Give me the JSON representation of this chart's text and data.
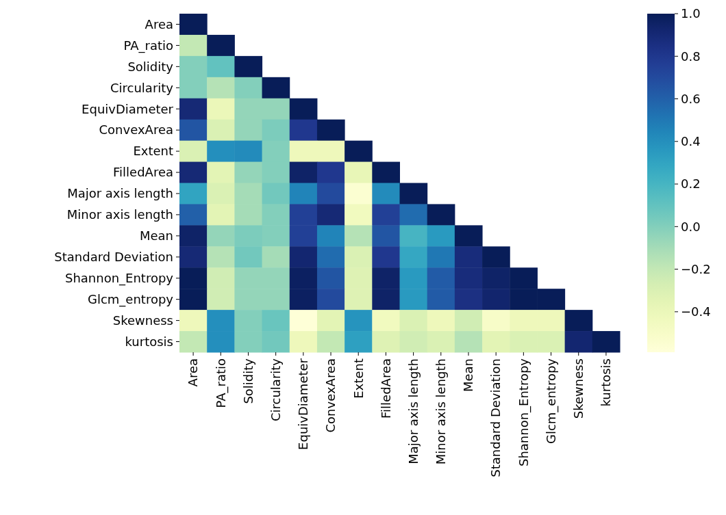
{
  "chart_data": {
    "type": "heatmap",
    "categories": [
      "Area",
      "PA_ratio",
      "Solidity",
      "Circularity",
      "EquivDiameter",
      "ConvexArea",
      "Extent",
      "FilledArea",
      "Major axis length",
      "Minor axis length",
      "Mean",
      "Standard Deviation",
      "Shannon_Entropy",
      "Glcm_entropy",
      "Skewness",
      "kurtosis"
    ],
    "y_categories": [
      "Area",
      "PA_ratio",
      "Solidity",
      "Circularity",
      "EquivDiameter",
      "ConvexArea",
      "Extent",
      "FilledArea",
      "Major axis length",
      "Minor axis length",
      "Mean",
      "Standard Deviation",
      "Shannon_Entropy",
      "Glcm_entropy",
      "Skewness",
      "kurtosis"
    ],
    "cells": [
      [
        1,
        null,
        null,
        null,
        null,
        null,
        null,
        null,
        null,
        null,
        null,
        null,
        null,
        null,
        null,
        null
      ],
      [
        -0.2,
        1,
        null,
        null,
        null,
        null,
        null,
        null,
        null,
        null,
        null,
        null,
        null,
        null,
        null,
        null
      ],
      [
        0.0,
        0.1,
        1,
        null,
        null,
        null,
        null,
        null,
        null,
        null,
        null,
        null,
        null,
        null,
        null,
        null
      ],
      [
        0.0,
        -0.15,
        0.0,
        1,
        null,
        null,
        null,
        null,
        null,
        null,
        null,
        null,
        null,
        null,
        null,
        null
      ],
      [
        0.9,
        -0.4,
        -0.05,
        -0.05,
        1,
        null,
        null,
        null,
        null,
        null,
        null,
        null,
        null,
        null,
        null,
        null
      ],
      [
        0.65,
        -0.3,
        -0.05,
        0.02,
        0.8,
        1,
        null,
        null,
        null,
        null,
        null,
        null,
        null,
        null,
        null,
        null
      ],
      [
        -0.3,
        0.4,
        0.42,
        0.0,
        -0.42,
        -0.42,
        1,
        null,
        null,
        null,
        null,
        null,
        null,
        null,
        null,
        null
      ],
      [
        0.9,
        -0.35,
        -0.05,
        0.0,
        0.95,
        0.8,
        -0.38,
        1,
        null,
        null,
        null,
        null,
        null,
        null,
        null,
        null
      ],
      [
        0.3,
        -0.3,
        -0.1,
        0.05,
        0.45,
        0.7,
        -0.55,
        0.42,
        1,
        null,
        null,
        null,
        null,
        null,
        null,
        null
      ],
      [
        0.6,
        -0.35,
        -0.1,
        0.0,
        0.75,
        0.9,
        -0.45,
        0.75,
        0.55,
        1,
        null,
        null,
        null,
        null,
        null,
        null
      ],
      [
        0.95,
        -0.05,
        0.02,
        0.0,
        0.75,
        0.45,
        -0.15,
        0.65,
        0.2,
        0.35,
        1,
        null,
        null,
        null,
        null,
        null
      ],
      [
        0.9,
        -0.15,
        0.05,
        -0.1,
        0.92,
        0.55,
        -0.3,
        0.8,
        0.28,
        0.5,
        0.88,
        1,
        null,
        null,
        null,
        null
      ],
      [
        1,
        -0.25,
        -0.05,
        -0.05,
        0.97,
        0.65,
        -0.32,
        0.95,
        0.35,
        0.62,
        0.88,
        0.95,
        1,
        null,
        null,
        null
      ],
      [
        1,
        -0.25,
        -0.05,
        -0.05,
        0.97,
        0.7,
        -0.32,
        0.95,
        0.35,
        0.62,
        0.85,
        0.93,
        1,
        1,
        null,
        null
      ],
      [
        -0.42,
        0.4,
        0.0,
        0.08,
        -0.58,
        -0.35,
        0.38,
        -0.45,
        -0.3,
        -0.42,
        -0.25,
        -0.5,
        -0.42,
        -0.42,
        1,
        null
      ],
      [
        -0.2,
        0.4,
        0.0,
        0.05,
        -0.42,
        -0.2,
        0.32,
        -0.32,
        -0.25,
        -0.3,
        -0.15,
        -0.35,
        -0.3,
        -0.3,
        0.92,
        1
      ]
    ],
    "clim": [
      -0.59,
      1.0
    ],
    "cticks": [
      {
        "value": -0.4,
        "label": "−0.4"
      },
      {
        "value": -0.2,
        "label": "−0.2"
      },
      {
        "value": 0,
        "label": "0.0"
      },
      {
        "value": 0.2,
        "label": "0.2"
      },
      {
        "value": 0.4,
        "label": "0.4"
      },
      {
        "value": 0.6,
        "label": "0.6"
      },
      {
        "value": 0.8,
        "label": "0.8"
      },
      {
        "value": 1.0,
        "label": "1.0"
      }
    ]
  }
}
